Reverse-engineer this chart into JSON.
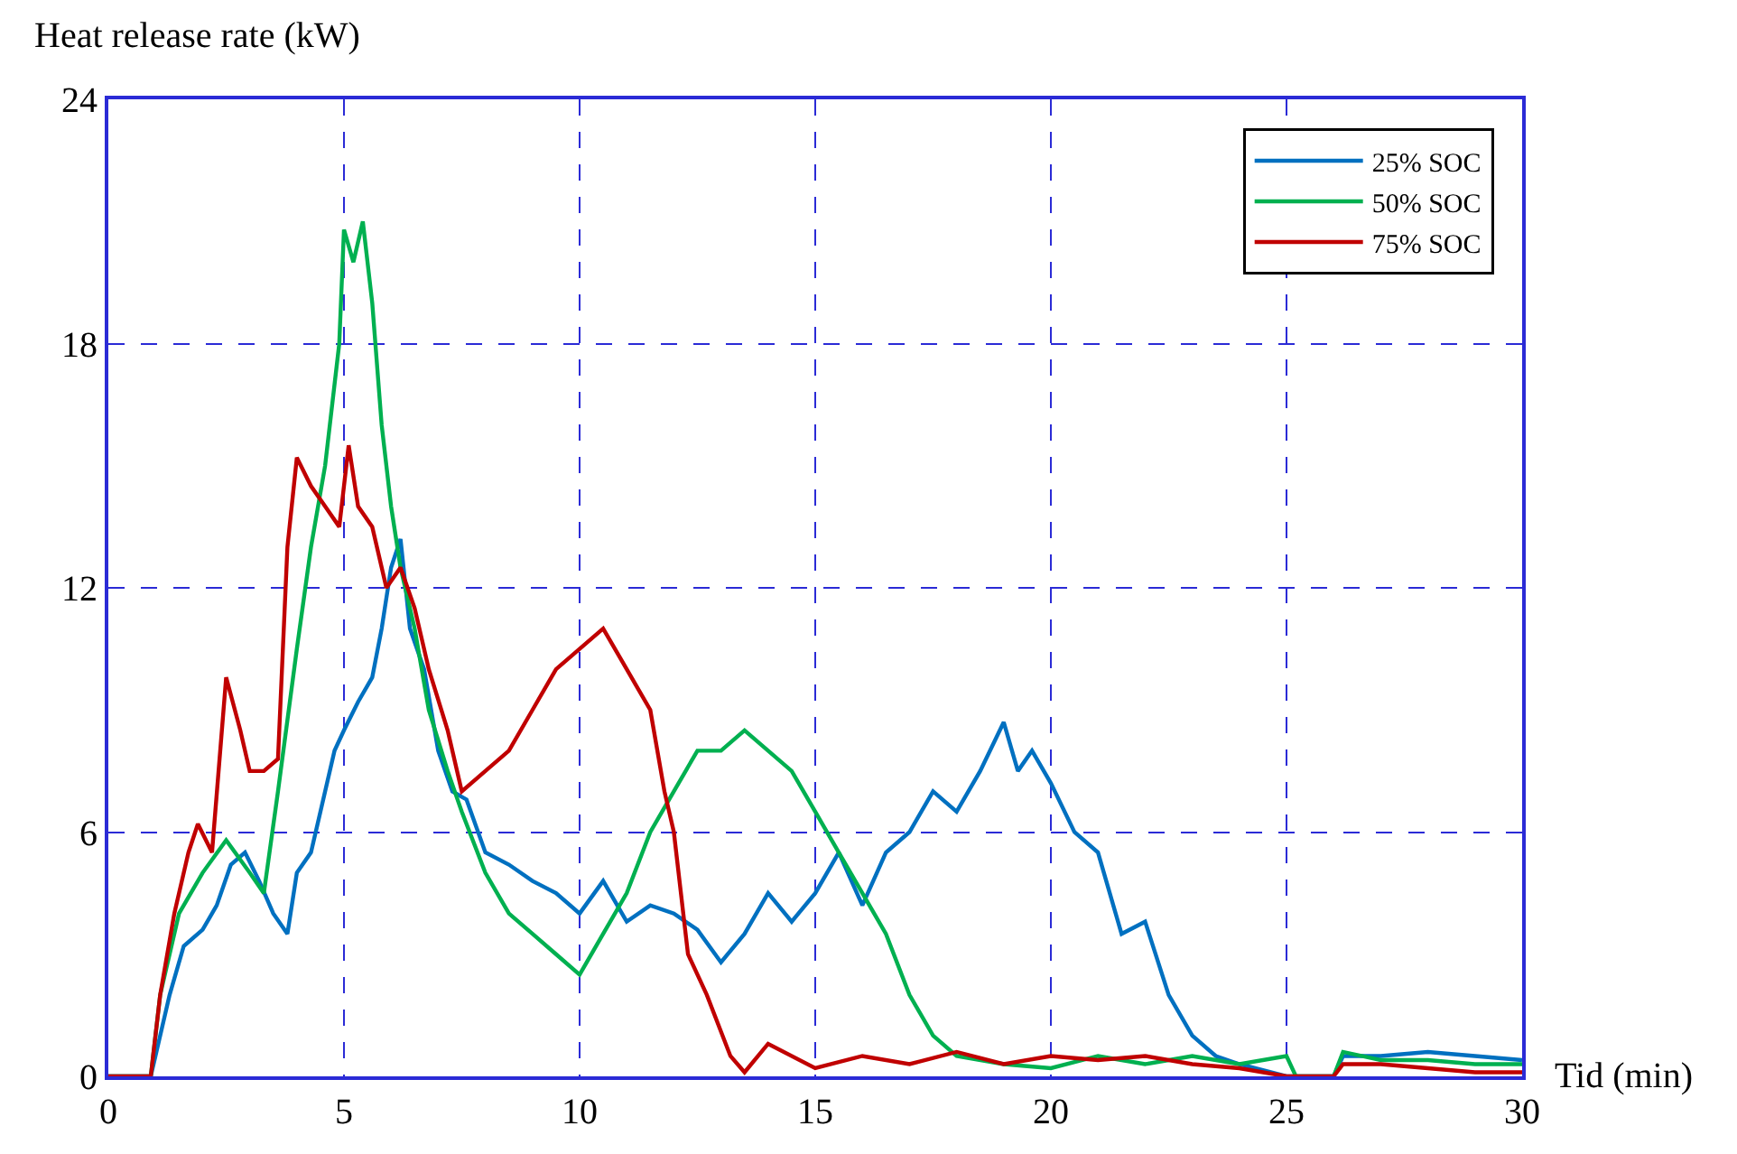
{
  "chart_data": {
    "type": "line",
    "xlabel": "Tid (min)",
    "ylabel": "Heat release rate (kW)",
    "xlim": [
      0,
      30
    ],
    "xticks": [
      0,
      5,
      10,
      15,
      20,
      25,
      30
    ],
    "ylim": [
      0,
      24
    ],
    "yticks": [
      0,
      6,
      12,
      18,
      24
    ],
    "grid": true,
    "legend": "top right",
    "marker": "none",
    "line_style": "solid",
    "series": [
      {
        "name": "25% SOC",
        "color": "#0070c0",
        "x": [
          0,
          0.9,
          1.0,
          1.3,
          1.6,
          2,
          2.3,
          2.6,
          2.9,
          3.2,
          3.5,
          3.8,
          4.0,
          4.3,
          4.5,
          4.8,
          5.0,
          5.3,
          5.6,
          5.8,
          6.0,
          6.2,
          6.4,
          6.7,
          7.0,
          7.3,
          7.6,
          8.0,
          8.5,
          9.0,
          9.5,
          10,
          10.5,
          11,
          11.5,
          12,
          12.5,
          13,
          13.5,
          14,
          14.5,
          15,
          15.5,
          16,
          16.5,
          17,
          17.5,
          18,
          18.5,
          19,
          19.3,
          19.6,
          20,
          20.5,
          21,
          21.5,
          22,
          22.5,
          23,
          23.5,
          24,
          25,
          26,
          26.2,
          27,
          28,
          29,
          30
        ],
        "values": [
          0,
          0,
          0.5,
          2,
          3.2,
          3.6,
          4.2,
          5.2,
          5.5,
          4.8,
          4,
          3.5,
          5,
          5.5,
          6.5,
          8,
          8.5,
          9.2,
          9.8,
          11,
          12.5,
          13.2,
          11,
          10,
          8,
          7,
          6.8,
          5.5,
          5.2,
          4.8,
          4.5,
          4,
          4.8,
          3.8,
          4.2,
          4,
          3.6,
          2.8,
          3.5,
          4.5,
          3.8,
          4.5,
          5.5,
          4.2,
          5.5,
          6,
          7,
          6.5,
          7.5,
          8.7,
          7.5,
          8,
          7.2,
          6,
          5.5,
          3.5,
          3.8,
          2,
          1,
          0.5,
          0.3,
          0,
          0,
          0.5,
          0.5,
          0.6,
          0.5,
          0.4
        ]
      },
      {
        "name": "50% SOC",
        "color": "#00b050",
        "x": [
          0,
          0.9,
          1.1,
          1.5,
          2,
          2.5,
          3,
          3.3,
          3.6,
          4.0,
          4.3,
          4.6,
          4.9,
          5.0,
          5.2,
          5.4,
          5.6,
          5.8,
          6.0,
          6.2,
          6.5,
          6.8,
          7.2,
          7.5,
          8,
          8.5,
          9,
          9.5,
          10,
          10.5,
          11,
          11.5,
          12,
          12.5,
          13,
          13.5,
          14,
          14.5,
          15,
          15.5,
          16,
          16.5,
          17,
          17.5,
          18,
          19,
          20,
          21,
          22,
          23,
          24,
          25,
          25.2,
          26,
          26.2,
          27,
          28,
          29,
          30
        ],
        "values": [
          0,
          0,
          2,
          4,
          5,
          5.8,
          5,
          4.5,
          7,
          10.5,
          13,
          15,
          18,
          20.8,
          20,
          21,
          19,
          16,
          14,
          12.5,
          11,
          9,
          7.5,
          6.5,
          5,
          4,
          3.5,
          3,
          2.5,
          3.5,
          4.5,
          6,
          7,
          8,
          8,
          8.5,
          8,
          7.5,
          6.5,
          5.5,
          4.5,
          3.5,
          2,
          1,
          0.5,
          0.3,
          0.2,
          0.5,
          0.3,
          0.5,
          0.3,
          0.5,
          0,
          0,
          0.6,
          0.4,
          0.4,
          0.3,
          0.3
        ]
      },
      {
        "name": "75% SOC",
        "color": "#c00000",
        "x": [
          0,
          0.9,
          1.1,
          1.4,
          1.7,
          1.9,
          2.2,
          2.5,
          2.8,
          3.0,
          3.3,
          3.6,
          3.8,
          4.0,
          4.3,
          4.6,
          4.9,
          5.1,
          5.3,
          5.6,
          5.9,
          6.2,
          6.5,
          6.8,
          7.2,
          7.5,
          8,
          8.5,
          9,
          9.5,
          10,
          10.5,
          11,
          11.5,
          11.8,
          12,
          12.3,
          12.7,
          13.2,
          13.5,
          14,
          15,
          16,
          17,
          18,
          19,
          20,
          21,
          22,
          23,
          24,
          25,
          26,
          26.2,
          27,
          28,
          29,
          30
        ],
        "values": [
          0,
          0,
          2,
          4,
          5.5,
          6.2,
          5.5,
          9.8,
          8.5,
          7.5,
          7.5,
          7.8,
          13,
          15.2,
          14.5,
          14,
          13.5,
          15.5,
          14,
          13.5,
          12,
          12.5,
          11.5,
          10,
          8.5,
          7,
          7.5,
          8,
          9,
          10,
          10.5,
          11,
          10,
          9,
          7,
          6,
          3,
          2,
          0.5,
          0.1,
          0.8,
          0.2,
          0.5,
          0.3,
          0.6,
          0.3,
          0.5,
          0.4,
          0.5,
          0.3,
          0.2,
          0,
          0,
          0.3,
          0.3,
          0.2,
          0.1,
          0.1
        ]
      }
    ]
  }
}
